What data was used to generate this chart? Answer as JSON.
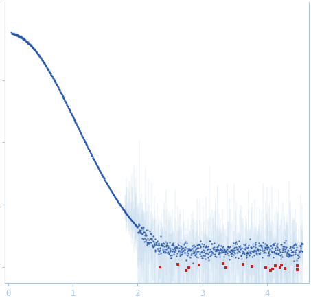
{
  "title": "",
  "xlabel": "",
  "ylabel": "",
  "xlim": [
    -0.05,
    4.65
  ],
  "ylim": [
    -0.05,
    0.85
  ],
  "background_color": "#ffffff",
  "dot_color": "#2255aa",
  "error_color": "#b0cce8",
  "outlier_color": "#cc2222",
  "dot_size": 2.5,
  "axis_color": "#a8c4dc",
  "tick_color": "#a8c4dc",
  "x_ticks": [
    0,
    1,
    2,
    3,
    4
  ],
  "y_ticks": [
    0.0,
    0.2,
    0.4,
    0.6
  ],
  "seed": 7
}
